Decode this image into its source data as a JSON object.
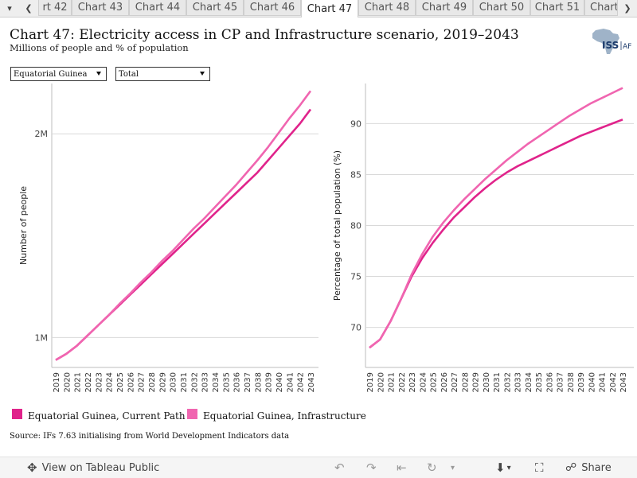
{
  "tabs": {
    "items": [
      "rt 42",
      "Chart 43",
      "Chart 44",
      "Chart 45",
      "Chart 46",
      "Chart 47",
      "Chart 48",
      "Chart 49",
      "Chart 50",
      "Chart 51",
      "Chart"
    ],
    "active_index": 5
  },
  "header": {
    "title": "Chart 47: Electricity access in CP and Infrastructure scenario, 2019–2043",
    "subtitle": "Millions of people and % of population",
    "logo_text": "ISS",
    "logo_suffix": "AF"
  },
  "filters": {
    "country": "Equatorial Guinea",
    "measure": "Total"
  },
  "colors": {
    "current_path": "#e0238b",
    "infrastructure": "#f065b0",
    "logo_map": "#9fb3c8",
    "logo_text": "#1b3a6b"
  },
  "chart_data": [
    {
      "type": "line",
      "x": [
        2019,
        2020,
        2021,
        2022,
        2023,
        2024,
        2025,
        2026,
        2027,
        2028,
        2029,
        2030,
        2031,
        2032,
        2033,
        2034,
        2035,
        2036,
        2037,
        2038,
        2039,
        2040,
        2041,
        2042,
        2043
      ],
      "xlabel": "",
      "ylabel": "Number of people",
      "yticks": [
        "1M",
        "2M"
      ],
      "ylim": [
        0.9,
        2.2
      ],
      "series": [
        {
          "name": "Equatorial Guinea, Current Path",
          "values": [
            0.89,
            0.92,
            0.96,
            1.01,
            1.06,
            1.11,
            1.16,
            1.21,
            1.26,
            1.31,
            1.36,
            1.41,
            1.46,
            1.51,
            1.56,
            1.61,
            1.66,
            1.71,
            1.76,
            1.81,
            1.87,
            1.93,
            1.99,
            2.05,
            2.12
          ]
        },
        {
          "name": "Equatorial Guinea, Infrastructure",
          "values": [
            0.89,
            0.92,
            0.96,
            1.01,
            1.06,
            1.11,
            1.165,
            1.215,
            1.27,
            1.32,
            1.375,
            1.425,
            1.48,
            1.535,
            1.585,
            1.64,
            1.695,
            1.75,
            1.81,
            1.87,
            1.935,
            2.005,
            2.075,
            2.14,
            2.21
          ]
        }
      ]
    },
    {
      "type": "line",
      "x": [
        2019,
        2020,
        2021,
        2022,
        2023,
        2024,
        2025,
        2026,
        2027,
        2028,
        2029,
        2030,
        2031,
        2032,
        2033,
        2034,
        2035,
        2036,
        2037,
        2038,
        2039,
        2040,
        2041,
        2042,
        2043
      ],
      "xlabel": "",
      "ylabel": "Percentage of total population (%)",
      "yticks": [
        70,
        75,
        80,
        85,
        90
      ],
      "ylim": [
        67,
        93
      ],
      "series": [
        {
          "name": "Equatorial Guinea, Current Path",
          "values": [
            68.0,
            68.8,
            70.6,
            72.8,
            75.0,
            76.8,
            78.3,
            79.6,
            80.8,
            81.8,
            82.8,
            83.7,
            84.5,
            85.2,
            85.8,
            86.3,
            86.8,
            87.3,
            87.8,
            88.3,
            88.8,
            89.2,
            89.6,
            90.0,
            90.4
          ]
        },
        {
          "name": "Equatorial Guinea, Infrastructure",
          "values": [
            68.0,
            68.8,
            70.6,
            72.8,
            75.2,
            77.2,
            78.9,
            80.3,
            81.5,
            82.6,
            83.6,
            84.6,
            85.5,
            86.4,
            87.2,
            88.0,
            88.7,
            89.4,
            90.1,
            90.8,
            91.4,
            92.0,
            92.5,
            93.0,
            93.5
          ]
        }
      ]
    }
  ],
  "legend": [
    {
      "label": "Equatorial Guinea, Current Path"
    },
    {
      "label": "Equatorial Guinea, Infrastructure"
    }
  ],
  "source": "Source: IFs 7.63 initialising from World Development Indicators data",
  "footer": {
    "view_label": "View on Tableau Public",
    "share_label": "Share"
  }
}
